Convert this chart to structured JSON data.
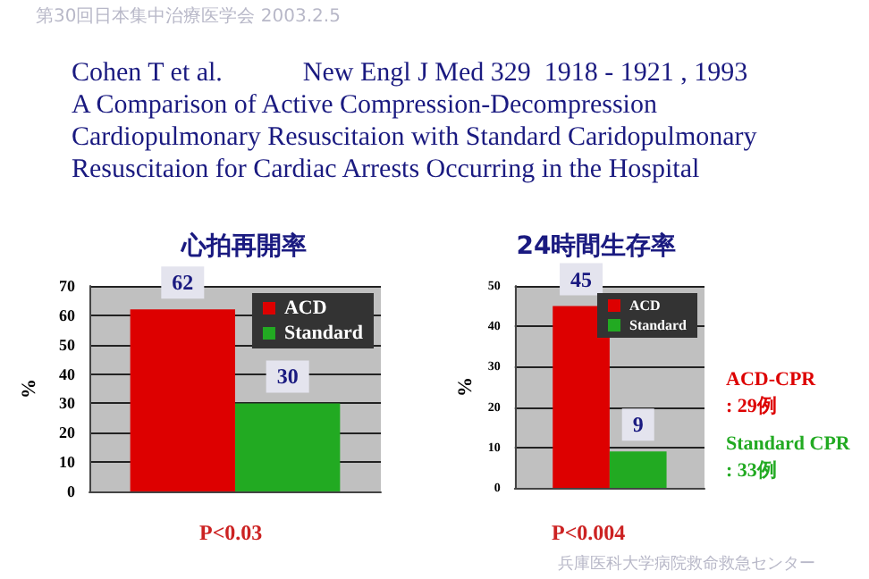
{
  "chart_data": [
    {
      "type": "other",
      "annotations": [
        "第30回日本集中治療医学会 2003.2.5",
        "Cohen T et al.            New Engl J Med 329  1918 - 1921 , 1993",
        "A Comparison of Active Compression-Decompression",
        "Cardiopulmonary Resuscitaion with Standard Caridopulmonary",
        "Resuscitaion for Cardiac Arrests Occurring in the Hospital",
        "兵庫医科大学病院救命救急センター"
      ]
    },
    {
      "type": "bar",
      "title": "心拍再開率",
      "ylabel": "%",
      "categories": [
        null
      ],
      "series": [
        {
          "name": "ACD",
          "color": "#dd0000",
          "values": [
            62
          ]
        },
        {
          "name": "Standard",
          "color": "#22aa22",
          "values": [
            30
          ]
        }
      ],
      "ylim": [
        0,
        70
      ],
      "yticks": [
        0,
        10,
        20,
        30,
        40,
        50,
        60,
        70
      ],
      "grid": "y",
      "legend": "top right",
      "data_labels": true,
      "annotations": [
        "P<0.03"
      ]
    },
    {
      "type": "bar",
      "title": "24時間生存率",
      "ylabel": "%",
      "categories": [
        null
      ],
      "series": [
        {
          "name": "ACD",
          "color": "#dd0000",
          "values": [
            45
          ]
        },
        {
          "name": "Standard",
          "color": "#22aa22",
          "values": [
            9
          ]
        }
      ],
      "ylim": [
        0,
        50
      ],
      "yticks": [
        0,
        10,
        20,
        30,
        40,
        50
      ],
      "grid": "y",
      "legend": "top right",
      "data_labels": true,
      "annotations": [
        "P<0.004",
        "ACD-CPR\n: 29例",
        "Standard CPR\n: 33例"
      ]
    }
  ]
}
